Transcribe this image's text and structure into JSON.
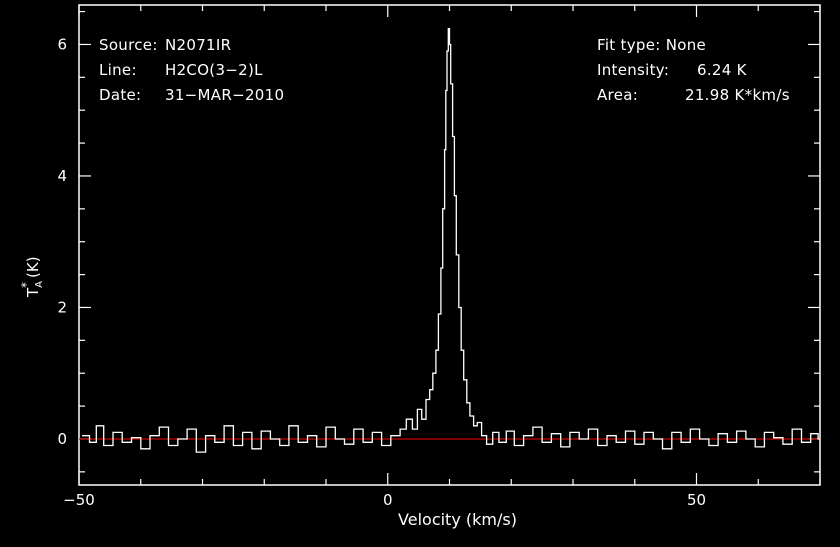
{
  "info_left": [
    {
      "label": "Source:",
      "value": "N2071IR"
    },
    {
      "label": "Line:",
      "value": "H2CO(3−2)L"
    },
    {
      "label": "Date:",
      "value": "31−MAR−2010"
    }
  ],
  "info_right": [
    {
      "label": "Fit type:",
      "value": "None"
    },
    {
      "label": "Intensity:",
      "value": "6.24 K"
    },
    {
      "label": "Area:",
      "value": "21.98 K*km/s"
    }
  ],
  "colors": {
    "background": "#000000",
    "foreground": "#ffffff",
    "baseline": "#cc0000"
  },
  "chart_data": {
    "type": "line",
    "xlabel": "Velocity (km/s)",
    "ylabel_base": "T",
    "ylabel_sub": "A",
    "ylabel_sup": "*",
    "ylabel_unit": "(K)",
    "xlim": [
      -50,
      70
    ],
    "ylim": [
      -0.7,
      6.6
    ],
    "xticks": [
      -50,
      0,
      50
    ],
    "xtick_labels": [
      "−50",
      "0",
      "50"
    ],
    "yticks": [
      0,
      2,
      4,
      6
    ],
    "ytick_labels": [
      "0",
      "2",
      "4",
      "6"
    ],
    "baseline_y": 0,
    "series": [
      {
        "x": [
          -49.5,
          -48.3,
          -47.2,
          -46.0,
          -44.5,
          -43.0,
          -41.5,
          -40.0,
          -38.5,
          -37.0,
          -35.5,
          -34.0,
          -32.5,
          -31.0,
          -29.5,
          -28.0,
          -26.5,
          -25.0,
          -23.5,
          -22.0,
          -20.5,
          -19.0,
          -17.5,
          -16.0,
          -14.5,
          -13.0,
          -11.5,
          -10.0,
          -8.5,
          -7.0,
          -5.5,
          -4.0,
          -2.5,
          -1.0,
          0.5,
          2.0,
          3.0,
          4.0,
          4.8,
          5.5,
          6.2,
          6.8,
          7.3,
          7.8,
          8.2,
          8.6,
          8.9,
          9.2,
          9.4,
          9.6,
          9.8,
          10.0,
          10.2,
          10.5,
          10.8,
          11.1,
          11.5,
          11.9,
          12.3,
          12.8,
          13.3,
          13.9,
          14.5,
          15.2,
          16.0,
          17.0,
          18.0,
          19.2,
          20.5,
          22.0,
          23.5,
          25.0,
          26.5,
          28.0,
          29.5,
          31.0,
          32.5,
          34.0,
          35.5,
          37.0,
          38.5,
          40.0,
          41.5,
          43.0,
          44.5,
          46.0,
          47.5,
          49.0,
          50.5,
          52.0,
          53.5,
          55.0,
          56.5,
          58.0,
          59.5,
          61.0,
          62.5,
          64.0,
          65.5,
          67.0,
          68.5,
          69.7
        ],
        "y": [
          0.05,
          -0.05,
          0.2,
          -0.1,
          0.1,
          -0.05,
          0.02,
          -0.15,
          0.05,
          0.18,
          -0.1,
          0.0,
          0.15,
          -0.2,
          0.05,
          -0.05,
          0.2,
          -0.1,
          0.1,
          -0.15,
          0.12,
          0.0,
          -0.1,
          0.2,
          -0.05,
          0.05,
          -0.12,
          0.18,
          0.0,
          -0.08,
          0.15,
          -0.05,
          0.1,
          -0.1,
          0.05,
          0.15,
          0.3,
          0.15,
          0.45,
          0.3,
          0.6,
          0.75,
          1.0,
          1.35,
          1.9,
          2.6,
          3.5,
          4.4,
          5.3,
          5.9,
          6.24,
          6.0,
          5.4,
          4.6,
          3.7,
          2.8,
          2.0,
          1.35,
          0.9,
          0.55,
          0.35,
          0.2,
          0.25,
          0.05,
          -0.08,
          0.1,
          -0.05,
          0.12,
          -0.1,
          0.05,
          0.18,
          -0.05,
          0.08,
          -0.12,
          0.1,
          0.0,
          0.15,
          -0.1,
          0.05,
          -0.05,
          0.12,
          -0.08,
          0.1,
          0.0,
          -0.15,
          0.1,
          -0.05,
          0.15,
          0.0,
          -0.1,
          0.08,
          -0.05,
          0.12,
          0.0,
          -0.12,
          0.1,
          0.02,
          -0.08,
          0.15,
          -0.05,
          0.08,
          0.0
        ]
      }
    ]
  }
}
